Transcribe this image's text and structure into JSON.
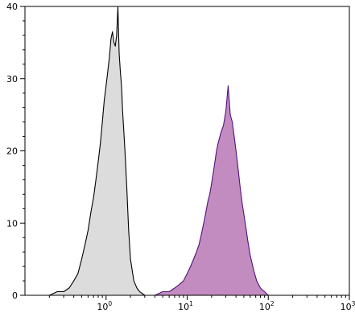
{
  "chart_data": {
    "type": "area",
    "title": "",
    "xlabel": "",
    "ylabel": "",
    "x_scale": "log",
    "xlim": [
      0.1,
      1000
    ],
    "ylim": [
      0,
      40
    ],
    "grid": false,
    "legend": "none",
    "y_ticks": [
      {
        "value": 0,
        "label": "0"
      },
      {
        "value": 10,
        "label": "10"
      },
      {
        "value": 20,
        "label": "20"
      },
      {
        "value": 30,
        "label": "30"
      },
      {
        "value": 40,
        "label": "40"
      }
    ],
    "x_ticks": [
      {
        "value": 1,
        "base": "10",
        "exp": "0"
      },
      {
        "value": 10,
        "base": "10",
        "exp": "1"
      },
      {
        "value": 100,
        "base": "10",
        "exp": "2"
      },
      {
        "value": 1000,
        "base": "10",
        "exp": "3"
      }
    ],
    "series": [
      {
        "fill": "#dcdcdc",
        "stroke": "#000000",
        "x": [
          0.2,
          0.25,
          0.3,
          0.35,
          0.4,
          0.45,
          0.5,
          0.55,
          0.6,
          0.65,
          0.7,
          0.75,
          0.8,
          0.85,
          0.9,
          0.95,
          1.0,
          1.05,
          1.1,
          1.15,
          1.2,
          1.25,
          1.3,
          1.35,
          1.4,
          1.45,
          1.5,
          1.55,
          1.6,
          1.7,
          1.8,
          1.9,
          2.0,
          2.2,
          2.4,
          2.6,
          3.0
        ],
        "y": [
          0,
          0.5,
          0.5,
          1.0,
          2.0,
          3.0,
          5.0,
          7.0,
          9.0,
          11.5,
          13.5,
          16.0,
          18.5,
          21.0,
          24.0,
          27.0,
          29.0,
          31.0,
          33.0,
          35.5,
          36.5,
          35.0,
          34.5,
          36.0,
          40.0,
          33.5,
          31.0,
          29.0,
          25.5,
          20.5,
          15.0,
          9.0,
          5.0,
          2.0,
          1.0,
          0.5,
          0
        ]
      },
      {
        "fill": "#c38cc0",
        "stroke": "#51127a",
        "x": [
          4.0,
          5.0,
          6.0,
          7.0,
          8.0,
          9.0,
          10.0,
          11.0,
          12.0,
          13.0,
          14.0,
          15.0,
          16.0,
          17.0,
          18.0,
          19.0,
          20.0,
          21.0,
          22.0,
          23.0,
          24.0,
          26.0,
          28.0,
          30.0,
          32.0,
          34.0,
          36.0,
          38.0,
          40.0,
          42.0,
          45.0,
          48.0,
          52.0,
          56.0,
          60.0,
          66.0,
          72.0,
          80.0,
          90.0,
          100.0
        ],
        "y": [
          0,
          0.5,
          0.5,
          1.0,
          1.5,
          2.0,
          3.0,
          4.0,
          5.0,
          6.0,
          7.0,
          8.5,
          10.0,
          11.5,
          13.0,
          14.0,
          15.5,
          17.0,
          18.5,
          20.0,
          21.0,
          22.5,
          23.5,
          25.5,
          29.0,
          25.0,
          24.0,
          22.0,
          20.0,
          18.0,
          15.0,
          12.5,
          10.0,
          7.5,
          5.5,
          3.5,
          2.0,
          1.0,
          0.5,
          0
        ]
      }
    ]
  }
}
